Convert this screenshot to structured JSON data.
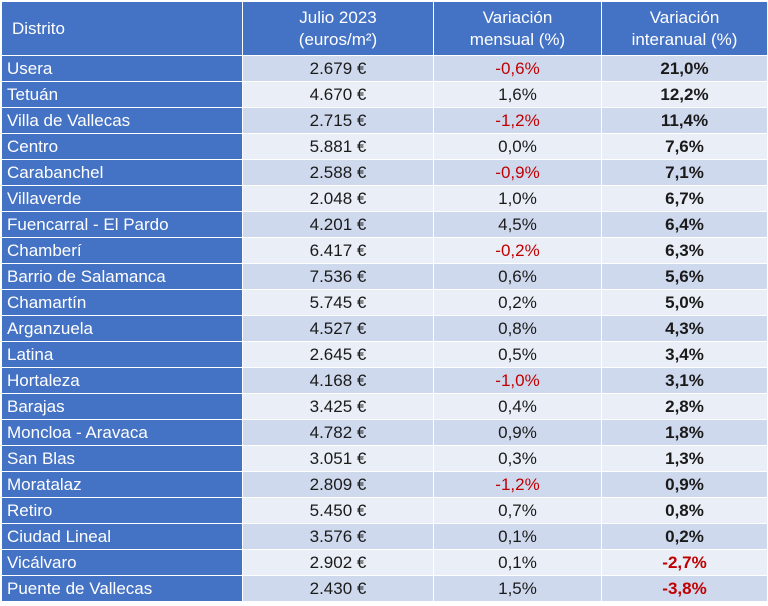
{
  "chart_data": {
    "type": "table",
    "columns": [
      {
        "lines": [
          "Distrito"
        ]
      },
      {
        "lines": [
          "Julio 2023",
          "(euros/m²)"
        ]
      },
      {
        "lines": [
          "Variación",
          "mensual (%)"
        ]
      },
      {
        "lines": [
          "Variación",
          "interanual (%)"
        ]
      }
    ],
    "rows": [
      {
        "distrito": "Usera",
        "precio": "2.679 €",
        "mensual": "-0,6%",
        "interanual": "21,0%"
      },
      {
        "distrito": "Tetuán",
        "precio": "4.670 €",
        "mensual": "1,6%",
        "interanual": "12,2%"
      },
      {
        "distrito": "Villa de Vallecas",
        "precio": "2.715 €",
        "mensual": "-1,2%",
        "interanual": "11,4%"
      },
      {
        "distrito": "Centro",
        "precio": "5.881 €",
        "mensual": "0,0%",
        "interanual": "7,6%"
      },
      {
        "distrito": "Carabanchel",
        "precio": "2.588 €",
        "mensual": "-0,9%",
        "interanual": "7,1%"
      },
      {
        "distrito": "Villaverde",
        "precio": "2.048 €",
        "mensual": "1,0%",
        "interanual": "6,7%"
      },
      {
        "distrito": "Fuencarral - El Pardo",
        "precio": "4.201 €",
        "mensual": "4,5%",
        "interanual": "6,4%"
      },
      {
        "distrito": "Chamberí",
        "precio": "6.417 €",
        "mensual": "-0,2%",
        "interanual": "6,3%"
      },
      {
        "distrito": "Barrio de Salamanca",
        "precio": "7.536 €",
        "mensual": "0,6%",
        "interanual": "5,6%"
      },
      {
        "distrito": "Chamartín",
        "precio": "5.745 €",
        "mensual": "0,2%",
        "interanual": "5,0%"
      },
      {
        "distrito": "Arganzuela",
        "precio": "4.527 €",
        "mensual": "0,8%",
        "interanual": "4,3%"
      },
      {
        "distrito": "Latina",
        "precio": "2.645 €",
        "mensual": "0,5%",
        "interanual": "3,4%"
      },
      {
        "distrito": "Hortaleza",
        "precio": "4.168 €",
        "mensual": "-1,0%",
        "interanual": "3,1%"
      },
      {
        "distrito": "Barajas",
        "precio": "3.425 €",
        "mensual": "0,4%",
        "interanual": "2,8%"
      },
      {
        "distrito": "Moncloa - Aravaca",
        "precio": "4.782 €",
        "mensual": "0,9%",
        "interanual": "1,8%"
      },
      {
        "distrito": "San Blas",
        "precio": "3.051 €",
        "mensual": "0,3%",
        "interanual": "1,3%"
      },
      {
        "distrito": "Moratalaz",
        "precio": "2.809 €",
        "mensual": "-1,2%",
        "interanual": "0,9%"
      },
      {
        "distrito": "Retiro",
        "precio": "5.450 €",
        "mensual": "0,7%",
        "interanual": "0,8%"
      },
      {
        "distrito": "Ciudad Lineal",
        "precio": "3.576 €",
        "mensual": "0,1%",
        "interanual": "0,2%"
      },
      {
        "distrito": "Vicálvaro",
        "precio": "2.902 €",
        "mensual": "0,1%",
        "interanual": "-2,7%"
      },
      {
        "distrito": "Puente de Vallecas",
        "precio": "2.430 €",
        "mensual": "1,5%",
        "interanual": "-3,8%"
      }
    ]
  },
  "colors": {
    "header_bg": "#4472c4",
    "header_text": "#ffffff",
    "row_band_dark": "#cfd9ee",
    "row_band_light": "#e9eef7",
    "negative": "#c00000",
    "text": "#1a1a1a"
  }
}
